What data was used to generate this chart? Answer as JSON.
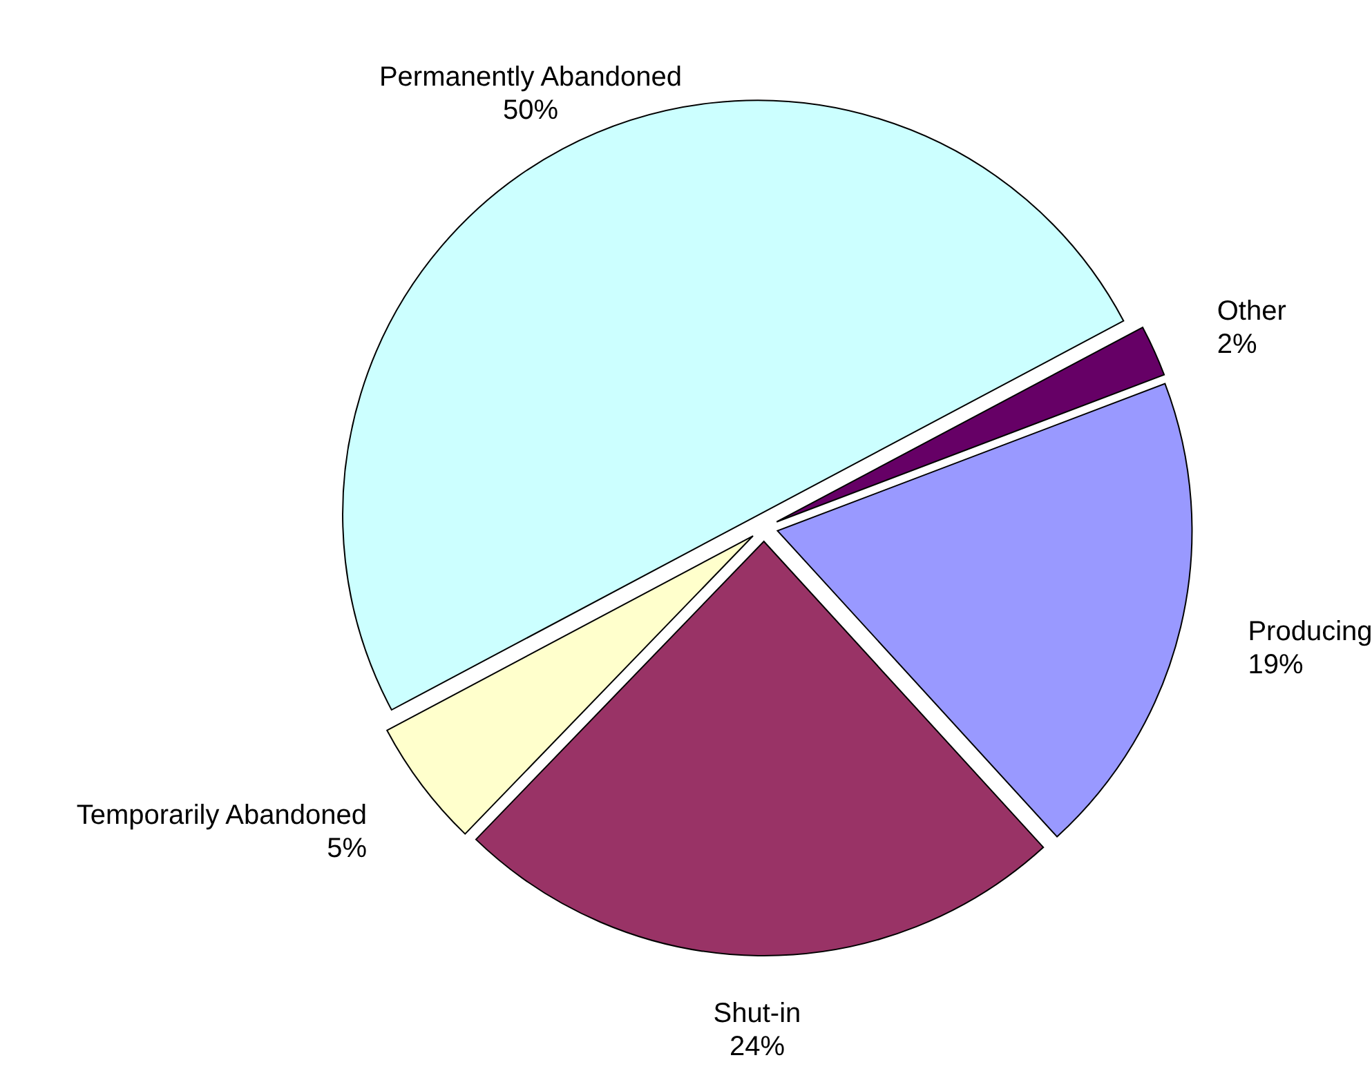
{
  "chart_data": {
    "type": "pie",
    "categories": [
      "Other",
      "Producing",
      "Shut-in",
      "Temporarily Abandoned",
      "Permanently Abandoned"
    ],
    "values": [
      2,
      19,
      24,
      5,
      50
    ],
    "value_labels": [
      "2%",
      "19%",
      "24%",
      "5%",
      "50%"
    ],
    "colors": [
      "#660066",
      "#9999ff",
      "#993366",
      "#ffffcc",
      "#ccffff"
    ]
  }
}
